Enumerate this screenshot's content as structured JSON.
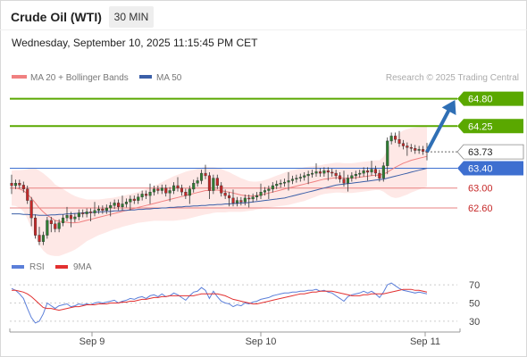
{
  "header": {
    "instrument": "Crude Oil (WTI)",
    "timeframe": "30 MIN",
    "datetime": "Wednesday, September 10, 2025 11:15:45 PM CET"
  },
  "legend": {
    "bollinger_label": "MA 20 + Bollinger Bands",
    "ma50_label": "MA 50",
    "credit": "Research © 2025 Trading Central",
    "rsi_label": "RSI",
    "rsi_ma_label": "9MA"
  },
  "colors": {
    "bullish_candle": "#2e7d32",
    "bearish_candle": "#c62828",
    "target_green": "#5aa800",
    "pivot_blue": "#3e6fd0",
    "support_red": "#e88080",
    "arrow_blue": "#2f6fb5",
    "bollinger_fill": "#fdd6d2",
    "ma20": "#f08080",
    "ma50": "#3b5fa8",
    "rsi": "#5b7fd9",
    "rsi_ma": "#e23030"
  },
  "chart_data": [
    {
      "type": "candlestick",
      "title": "Crude Oil (WTI) 30 MIN",
      "x_ticks": [
        "Sep 9",
        "Sep 10",
        "Sep 11"
      ],
      "ylim": [
        61.7,
        65.1
      ],
      "grid": false,
      "levels": [
        {
          "value": 64.8,
          "label": "64.80",
          "kind": "target"
        },
        {
          "value": 64.25,
          "label": "64.25",
          "kind": "target"
        },
        {
          "value": 63.73,
          "label": "63.73",
          "kind": "last price"
        },
        {
          "value": 63.4,
          "label": "63.40",
          "kind": "pivot"
        },
        {
          "value": 63.0,
          "label": "63.00",
          "kind": "support"
        },
        {
          "value": 62.6,
          "label": "62.60",
          "kind": "support"
        }
      ],
      "last_price": 63.73,
      "arrow": {
        "from": 63.73,
        "to": 64.8,
        "direction": "up"
      },
      "close": [
        63.05,
        63.1,
        63.06,
        62.98,
        62.75,
        62.4,
        62.05,
        61.92,
        62.05,
        62.35,
        62.28,
        62.18,
        62.3,
        62.4,
        62.45,
        62.38,
        62.42,
        62.5,
        62.48,
        62.52,
        62.5,
        62.55,
        62.58,
        62.55,
        62.6,
        62.65,
        62.7,
        62.62,
        62.68,
        62.72,
        62.78,
        62.75,
        62.82,
        62.88,
        62.85,
        62.92,
        62.98,
        62.95,
        63.0,
        62.9,
        62.95,
        63.05,
        63.0,
        62.92,
        62.85,
        62.98,
        63.1,
        63.15,
        63.3,
        63.25,
        62.95,
        63.2,
        63.05,
        62.9,
        62.85,
        62.8,
        62.7,
        62.75,
        62.72,
        62.8,
        62.78,
        62.82,
        62.85,
        62.92,
        62.95,
        62.98,
        63.05,
        63.08,
        63.1,
        63.12,
        63.15,
        63.18,
        63.2,
        63.22,
        63.25,
        63.28,
        63.3,
        63.33,
        63.3,
        63.35,
        63.32,
        63.3,
        63.25,
        63.18,
        63.1,
        63.2,
        63.25,
        63.28,
        63.3,
        63.35,
        63.32,
        63.38,
        63.3,
        63.2,
        63.45,
        63.95,
        64.05,
        63.98,
        63.9,
        63.85,
        63.82,
        63.8,
        63.76,
        63.78,
        63.74,
        63.73
      ],
      "ma20": [
        63.0,
        63.0,
        62.98,
        62.95,
        62.88,
        62.8,
        62.7,
        62.6,
        62.52,
        62.45,
        62.4,
        62.35,
        62.33,
        62.32,
        62.31,
        62.3,
        62.3,
        62.31,
        62.33,
        62.35,
        62.37,
        62.39,
        62.41,
        62.43,
        62.45,
        62.47,
        62.49,
        62.51,
        62.53,
        62.55,
        62.57,
        62.59,
        62.61,
        62.63,
        62.65,
        62.67,
        62.69,
        62.71,
        62.73,
        62.75,
        62.77,
        62.79,
        62.81,
        62.83,
        62.85,
        62.87,
        62.89,
        62.91,
        62.93,
        62.95,
        62.95,
        62.96,
        62.96,
        62.95,
        62.93,
        62.92,
        62.9,
        62.88,
        62.86,
        62.85,
        62.84,
        62.84,
        62.85,
        62.86,
        62.88,
        62.9,
        62.92,
        62.94,
        62.96,
        62.98,
        63.0,
        63.02,
        63.04,
        63.06,
        63.08,
        63.1,
        63.12,
        63.14,
        63.16,
        63.18,
        63.19,
        63.2,
        63.21,
        63.21,
        63.2,
        63.2,
        63.2,
        63.21,
        63.22,
        63.23,
        63.24,
        63.25,
        63.26,
        63.26,
        63.28,
        63.32,
        63.37,
        63.42,
        63.46,
        63.5,
        63.53,
        63.56,
        63.58,
        63.6,
        63.62,
        63.64
      ],
      "ma50": [
        62.48,
        62.48,
        62.48,
        62.47,
        62.47,
        62.46,
        62.46,
        62.45,
        62.45,
        62.45,
        62.46,
        62.46,
        62.47,
        62.47,
        62.48,
        62.48,
        62.49,
        62.49,
        62.5,
        62.5,
        62.51,
        62.51,
        62.52,
        62.52,
        62.53,
        62.53,
        62.54,
        62.54,
        62.55,
        62.55,
        62.56,
        62.56,
        62.57,
        62.57,
        62.58,
        62.58,
        62.59,
        62.59,
        62.6,
        62.6,
        62.61,
        62.61,
        62.62,
        62.62,
        62.63,
        62.63,
        62.64,
        62.64,
        62.65,
        62.65,
        62.66,
        62.66,
        62.67,
        62.67,
        62.68,
        62.68,
        62.69,
        62.69,
        62.7,
        62.7,
        62.71,
        62.72,
        62.73,
        62.74,
        62.75,
        62.76,
        62.77,
        62.78,
        62.79,
        62.8,
        62.82,
        62.84,
        62.86,
        62.88,
        62.9,
        62.92,
        62.94,
        62.96,
        62.98,
        63.0,
        63.02,
        63.04,
        63.06,
        63.07,
        63.08,
        63.09,
        63.1,
        63.11,
        63.12,
        63.13,
        63.14,
        63.15,
        63.16,
        63.17,
        63.18,
        63.2,
        63.22,
        63.24,
        63.26,
        63.28,
        63.3,
        63.32,
        63.34,
        63.36,
        63.38,
        63.4
      ],
      "bb_width": [
        0.35,
        0.36,
        0.38,
        0.42,
        0.5,
        0.6,
        0.7,
        0.75,
        0.78,
        0.78,
        0.76,
        0.72,
        0.7,
        0.66,
        0.62,
        0.58,
        0.54,
        0.5,
        0.46,
        0.42,
        0.4,
        0.38,
        0.36,
        0.35,
        0.34,
        0.33,
        0.32,
        0.32,
        0.31,
        0.31,
        0.31,
        0.31,
        0.31,
        0.32,
        0.33,
        0.34,
        0.35,
        0.37,
        0.39,
        0.41,
        0.43,
        0.45,
        0.46,
        0.47,
        0.48,
        0.48,
        0.48,
        0.48,
        0.48,
        0.48,
        0.47,
        0.46,
        0.45,
        0.44,
        0.42,
        0.4,
        0.38,
        0.36,
        0.34,
        0.32,
        0.3,
        0.29,
        0.28,
        0.28,
        0.28,
        0.29,
        0.3,
        0.31,
        0.32,
        0.33,
        0.34,
        0.34,
        0.34,
        0.34,
        0.34,
        0.33,
        0.32,
        0.31,
        0.3,
        0.3,
        0.3,
        0.3,
        0.3,
        0.3,
        0.3,
        0.3,
        0.3,
        0.3,
        0.3,
        0.3,
        0.3,
        0.3,
        0.3,
        0.3,
        0.35,
        0.45,
        0.55,
        0.62,
        0.65,
        0.66,
        0.66,
        0.65,
        0.64,
        0.63,
        0.62,
        0.61
      ]
    },
    {
      "type": "line",
      "title": "RSI",
      "yticks": [
        70,
        50,
        30
      ],
      "ylim": [
        22,
        78
      ],
      "series": [
        {
          "name": "RSI",
          "values": [
            66,
            64,
            60,
            55,
            44,
            34,
            28,
            30,
            38,
            50,
            47,
            44,
            47,
            48,
            49,
            46,
            47,
            49,
            48,
            49,
            48,
            50,
            51,
            50,
            51,
            52,
            53,
            50,
            52,
            53,
            55,
            54,
            56,
            57,
            55,
            58,
            59,
            57,
            60,
            57,
            58,
            61,
            59,
            56,
            53,
            58,
            62,
            63,
            67,
            64,
            55,
            63,
            57,
            52,
            50,
            49,
            46,
            48,
            47,
            50,
            49,
            51,
            52,
            54,
            55,
            56,
            58,
            59,
            60,
            61,
            61,
            62,
            62,
            63,
            63,
            64,
            64,
            65,
            63,
            64,
            62,
            61,
            58,
            55,
            52,
            57,
            59,
            60,
            61,
            63,
            61,
            63,
            60,
            56,
            62,
            70,
            72,
            69,
            66,
            64,
            63,
            62,
            61,
            62,
            61,
            60
          ]
        },
        {
          "name": "9MA",
          "values": [
            64,
            64,
            63,
            62,
            60,
            57,
            53,
            49,
            45,
            44,
            44,
            43,
            42,
            43,
            44,
            45,
            46,
            46,
            47,
            48,
            48,
            48,
            49,
            49,
            49,
            50,
            50,
            50,
            51,
            51,
            52,
            52,
            53,
            54,
            54,
            55,
            56,
            56,
            57,
            57,
            58,
            58,
            58,
            58,
            58,
            58,
            58,
            59,
            60,
            60,
            60,
            60,
            60,
            59,
            58,
            56,
            54,
            53,
            52,
            51,
            50,
            49,
            49,
            50,
            51,
            52,
            53,
            54,
            55,
            56,
            57,
            58,
            59,
            60,
            60,
            61,
            62,
            62,
            63,
            63,
            63,
            63,
            62,
            61,
            60,
            59,
            58,
            58,
            58,
            59,
            59,
            60,
            60,
            60,
            60,
            61,
            62,
            63,
            64,
            65,
            65,
            65,
            64,
            64,
            63,
            62
          ]
        }
      ]
    }
  ]
}
